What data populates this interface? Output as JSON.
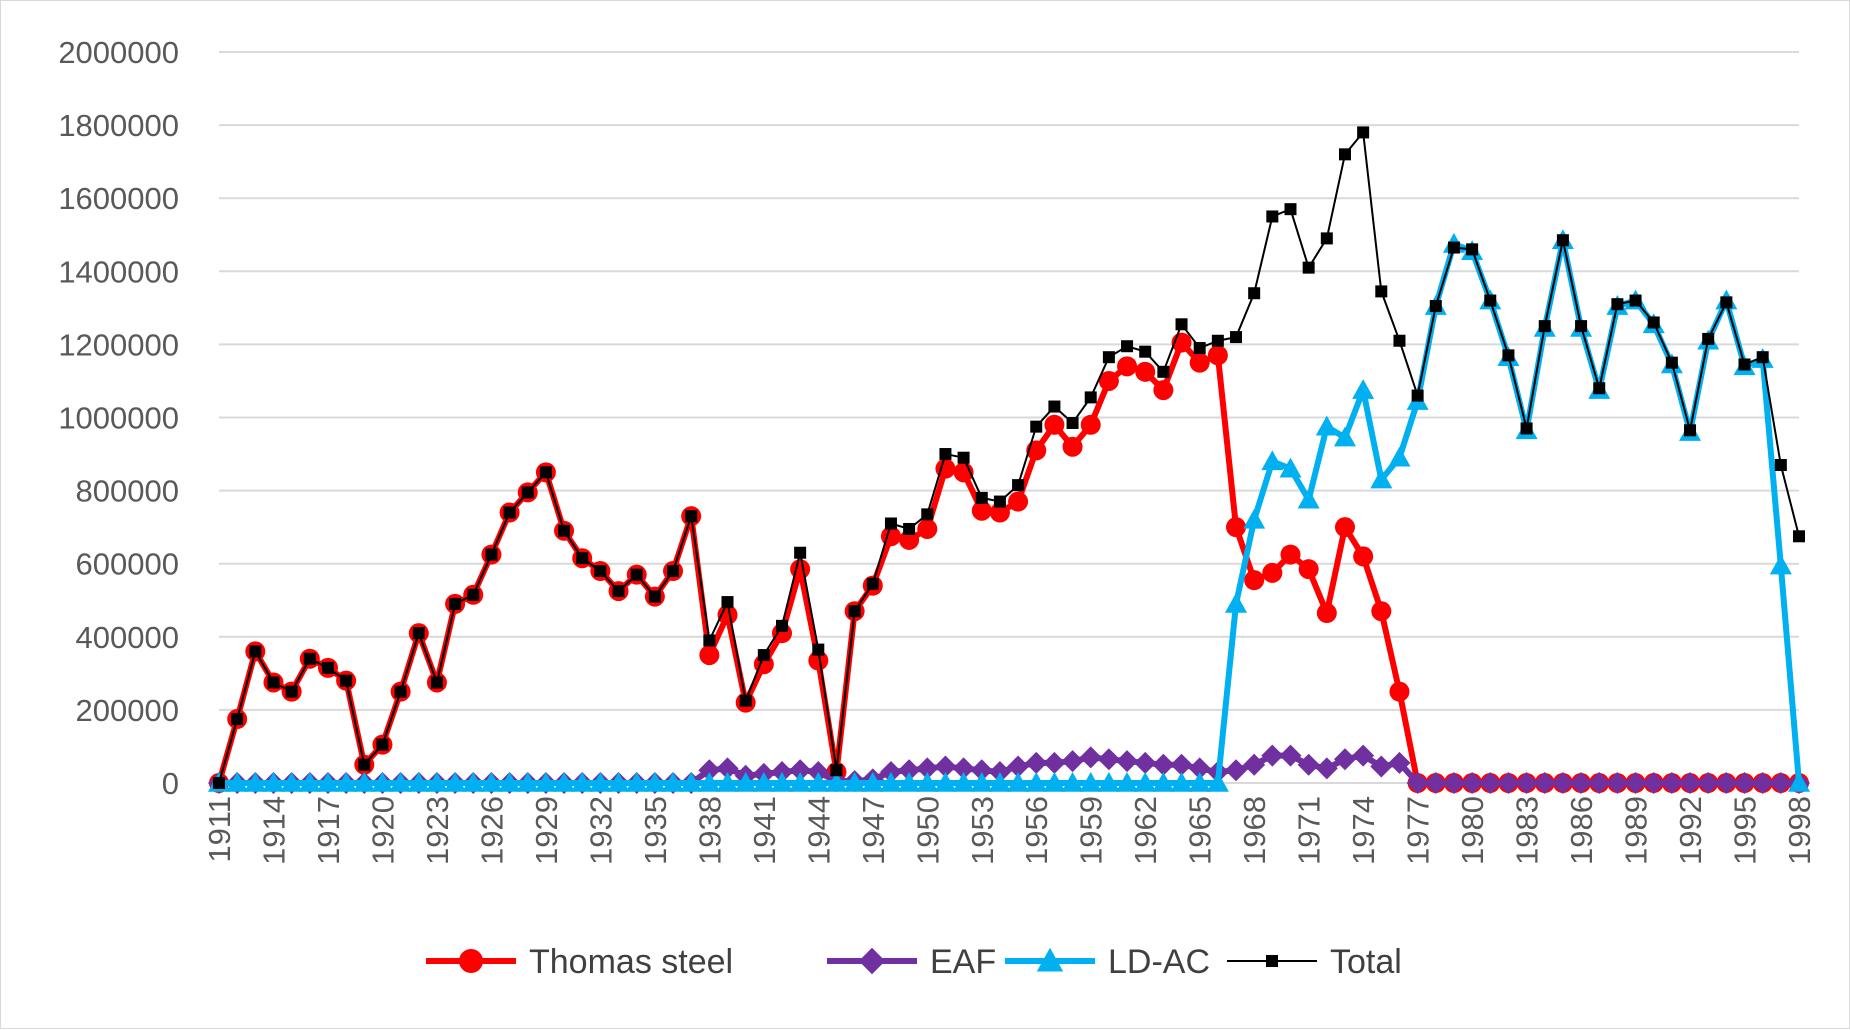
{
  "chart_data": {
    "type": "line",
    "title": "",
    "xlabel": "",
    "ylabel": "",
    "ylim": [
      0,
      2000000
    ],
    "yticks": [
      0,
      200000,
      400000,
      600000,
      800000,
      1000000,
      1200000,
      1400000,
      1600000,
      1800000,
      2000000
    ],
    "ytick_labels": [
      "0",
      "200000",
      "400000",
      "600000",
      "800000",
      "1000000",
      "1200000",
      "1400000",
      "1600000",
      "1800000",
      "2000000"
    ],
    "xlim": [
      1911,
      1998
    ],
    "xtick_labels": [
      "1911",
      "1914",
      "1917",
      "1920",
      "1923",
      "1926",
      "1929",
      "1932",
      "1935",
      "1938",
      "1941",
      "1944",
      "1947",
      "1950",
      "1953",
      "1956",
      "1959",
      "1962",
      "1965",
      "1968",
      "1971",
      "1974",
      "1977",
      "1980",
      "1983",
      "1986",
      "1989",
      "1992",
      "1995",
      "1998"
    ],
    "grid": "horizontal",
    "legend_position": "bottom",
    "x": [
      1911,
      1912,
      1913,
      1914,
      1915,
      1916,
      1917,
      1918,
      1919,
      1920,
      1921,
      1922,
      1923,
      1924,
      1925,
      1926,
      1927,
      1928,
      1929,
      1930,
      1931,
      1932,
      1933,
      1934,
      1935,
      1936,
      1937,
      1938,
      1939,
      1940,
      1941,
      1942,
      1943,
      1944,
      1945,
      1946,
      1947,
      1948,
      1949,
      1950,
      1951,
      1952,
      1953,
      1954,
      1955,
      1956,
      1957,
      1958,
      1959,
      1960,
      1961,
      1962,
      1963,
      1964,
      1965,
      1966,
      1967,
      1968,
      1969,
      1970,
      1971,
      1972,
      1973,
      1974,
      1975,
      1976,
      1977,
      1978,
      1979,
      1980,
      1981,
      1982,
      1983,
      1984,
      1985,
      1986,
      1987,
      1988,
      1989,
      1990,
      1991,
      1992,
      1993,
      1994,
      1995,
      1996,
      1997,
      1998
    ],
    "series": [
      {
        "name": "Thomas steel",
        "color": "#ff0000",
        "marker": "circle",
        "values": [
          0,
          175000,
          360000,
          275000,
          250000,
          340000,
          315000,
          280000,
          50000,
          105000,
          250000,
          410000,
          275000,
          490000,
          515000,
          625000,
          740000,
          795000,
          850000,
          690000,
          615000,
          580000,
          525000,
          570000,
          510000,
          580000,
          730000,
          350000,
          460000,
          220000,
          325000,
          410000,
          585000,
          335000,
          30000,
          470000,
          540000,
          675000,
          665000,
          695000,
          860000,
          850000,
          745000,
          740000,
          770000,
          910000,
          980000,
          920000,
          980000,
          1100000,
          1140000,
          1125000,
          1075000,
          1205000,
          1150000,
          1170000,
          700000,
          555000,
          575000,
          625000,
          585000,
          465000,
          700000,
          620000,
          470000,
          250000,
          0,
          0,
          0,
          0,
          0,
          0,
          0,
          0,
          0,
          0,
          0,
          0,
          0,
          0,
          0,
          0,
          0,
          0,
          0,
          0,
          0,
          0
        ]
      },
      {
        "name": "EAF",
        "color": "#7030a0",
        "marker": "diamond",
        "values": [
          0,
          0,
          0,
          0,
          0,
          0,
          0,
          0,
          0,
          0,
          0,
          0,
          0,
          0,
          0,
          0,
          0,
          0,
          0,
          0,
          0,
          0,
          0,
          0,
          0,
          0,
          0,
          35000,
          40000,
          20000,
          25000,
          30000,
          35000,
          30000,
          5000,
          5000,
          10000,
          30000,
          35000,
          40000,
          45000,
          40000,
          35000,
          30000,
          45000,
          55000,
          55000,
          60000,
          70000,
          65000,
          60000,
          55000,
          50000,
          50000,
          40000,
          30000,
          35000,
          50000,
          75000,
          75000,
          50000,
          40000,
          65000,
          75000,
          45000,
          55000,
          0,
          0,
          0,
          0,
          0,
          0,
          0,
          0,
          0,
          0,
          0,
          0,
          0,
          0,
          0,
          0,
          0,
          0,
          0,
          0,
          0,
          0
        ]
      },
      {
        "name": "LD-AC",
        "color": "#00b0f0",
        "marker": "triangle",
        "values": [
          0,
          0,
          0,
          0,
          0,
          0,
          0,
          0,
          0,
          0,
          0,
          0,
          0,
          0,
          0,
          0,
          0,
          0,
          0,
          0,
          0,
          0,
          0,
          0,
          0,
          0,
          0,
          0,
          0,
          0,
          0,
          0,
          0,
          0,
          0,
          0,
          0,
          0,
          0,
          0,
          0,
          0,
          0,
          0,
          0,
          0,
          0,
          0,
          0,
          0,
          0,
          0,
          0,
          0,
          0,
          0,
          490000,
          720000,
          880000,
          860000,
          775000,
          975000,
          945000,
          1075000,
          830000,
          890000,
          1045000,
          1305000,
          1475000,
          1455000,
          1320000,
          1165000,
          965000,
          1245000,
          1485000,
          1245000,
          1075000,
          1305000,
          1320000,
          1255000,
          1145000,
          960000,
          1210000,
          1320000,
          1140000,
          1160000,
          595000,
          0
        ]
      },
      {
        "name": "Total",
        "color": "#000000",
        "marker": "square",
        "values": [
          0,
          175000,
          360000,
          275000,
          250000,
          340000,
          315000,
          280000,
          50000,
          105000,
          250000,
          410000,
          275000,
          490000,
          515000,
          625000,
          740000,
          795000,
          850000,
          690000,
          615000,
          580000,
          525000,
          570000,
          510000,
          580000,
          730000,
          390000,
          495000,
          225000,
          350000,
          430000,
          630000,
          365000,
          35000,
          470000,
          545000,
          710000,
          695000,
          735000,
          900000,
          890000,
          780000,
          770000,
          815000,
          975000,
          1030000,
          985000,
          1055000,
          1165000,
          1195000,
          1180000,
          1125000,
          1255000,
          1190000,
          1210000,
          1220000,
          1340000,
          1550000,
          1570000,
          1410000,
          1490000,
          1720000,
          1780000,
          1345000,
          1210000,
          1060000,
          1305000,
          1465000,
          1460000,
          1320000,
          1170000,
          970000,
          1250000,
          1485000,
          1250000,
          1080000,
          1310000,
          1320000,
          1260000,
          1150000,
          965000,
          1215000,
          1315000,
          1145000,
          1165000,
          870000,
          675000
        ]
      }
    ]
  }
}
